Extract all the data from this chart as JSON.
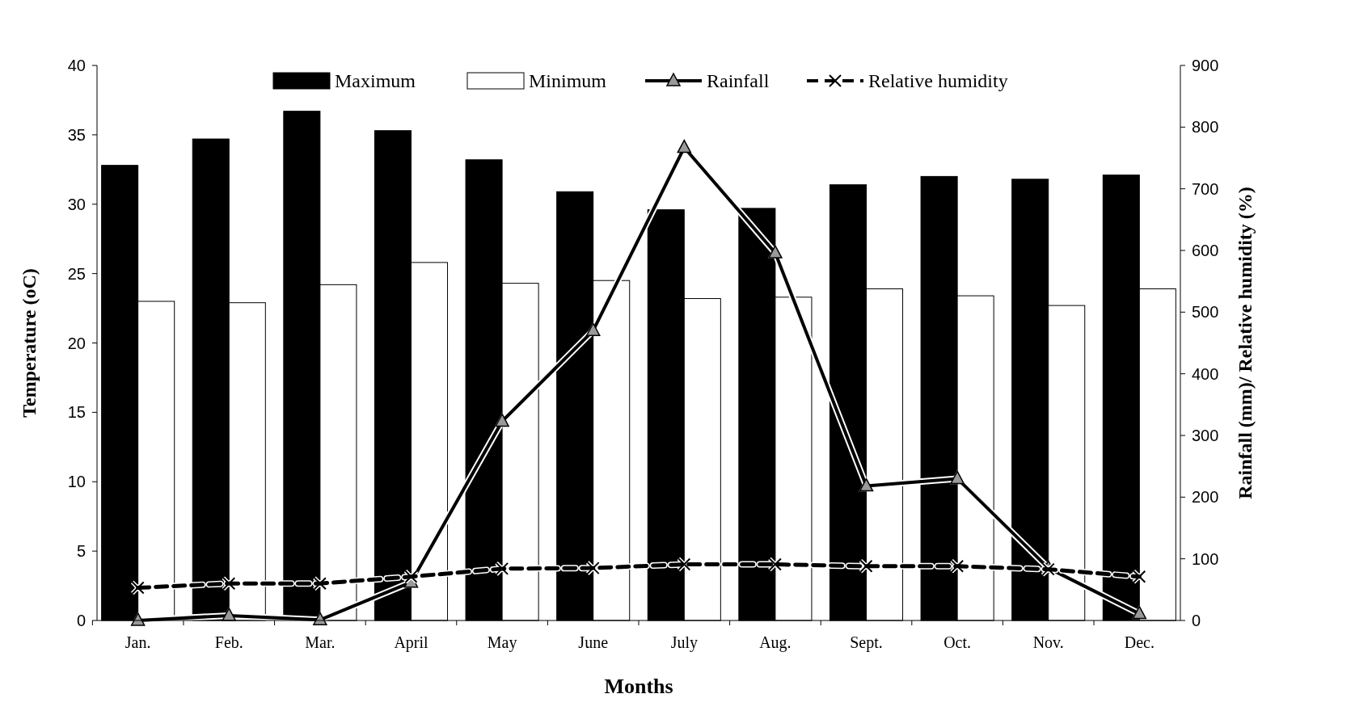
{
  "chart_data": {
    "type": "bar",
    "xlabel": "Months",
    "ylabel": "Temperature (oC)",
    "y2label": "Rainfall (mm)/ Relative humidity (%)",
    "categories": [
      "Jan.",
      "Feb.",
      "Mar.",
      "April",
      "May",
      "June",
      "July",
      "Aug.",
      "Sept.",
      "Oct.",
      "Nov.",
      "Dec."
    ],
    "series": [
      {
        "name": "Maximum",
        "color": "#000000",
        "values": [
          32.8,
          34.7,
          36.7,
          35.3,
          33.2,
          30.9,
          29.6,
          29.7,
          31.4,
          32.0,
          31.8,
          32.1
        ]
      },
      {
        "name": "Minimum",
        "color": "#ffffff",
        "values": [
          23.0,
          22.9,
          24.2,
          25.8,
          24.3,
          24.5,
          23.2,
          23.3,
          23.9,
          23.4,
          22.7,
          23.9
        ]
      },
      {
        "name": "Rainfall",
        "type": "line",
        "axis": "y2",
        "color": "#000000",
        "marker": "triangle",
        "line_style": "solid",
        "values": [
          0,
          8,
          1,
          62,
          323,
          470,
          767,
          596,
          218,
          230,
          85,
          11
        ]
      },
      {
        "name": "Relative humidity",
        "type": "line",
        "axis": "y2",
        "color": "#000000",
        "marker": "cross",
        "line_style": "dashed",
        "values": [
          53,
          60,
          60,
          71,
          84,
          85,
          91,
          91,
          88,
          88,
          83,
          71
        ]
      }
    ],
    "ylim": [
      0,
      40
    ],
    "yticks": [
      0,
      5,
      10,
      15,
      20,
      25,
      30,
      35,
      40
    ],
    "y2lim": [
      0,
      900
    ],
    "y2ticks": [
      0,
      100,
      200,
      300,
      400,
      500,
      600,
      700,
      800,
      900
    ],
    "legend": "top",
    "grid": false
  }
}
